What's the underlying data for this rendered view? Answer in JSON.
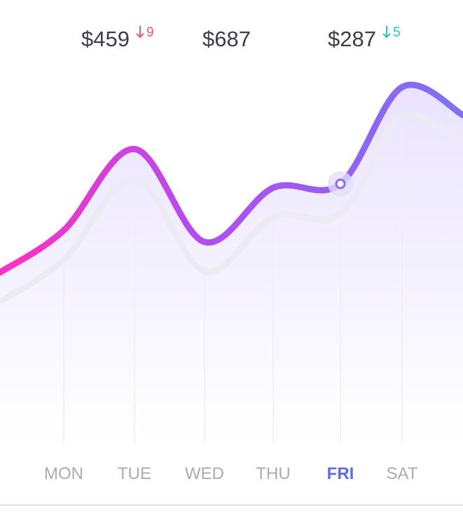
{
  "chart_data": {
    "type": "line",
    "categories": [
      "MON",
      "TUE",
      "WED",
      "THU",
      "FRI",
      "SAT"
    ],
    "series": [
      {
        "color": "#8a6cf5",
        "values": [
          55,
          76,
          52,
          66,
          67,
          92
        ]
      }
    ],
    "ylim": [
      0,
      100
    ],
    "highlight_index": 4,
    "annotations": [
      {
        "text": "$459",
        "change": "9",
        "change_color": "#e8556b"
      },
      {
        "text": "$687"
      },
      {
        "text": "$287",
        "change": "5",
        "change_color": "#2bc4a0"
      }
    ]
  }
}
